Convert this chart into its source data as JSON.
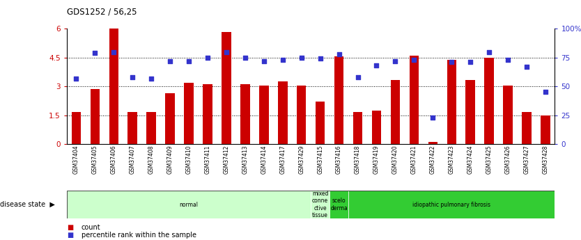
{
  "title": "GDS1252 / 56,25",
  "samples": [
    "GSM37404",
    "GSM37405",
    "GSM37406",
    "GSM37407",
    "GSM37408",
    "GSM37409",
    "GSM37410",
    "GSM37411",
    "GSM37412",
    "GSM37413",
    "GSM37414",
    "GSM37417",
    "GSM37429",
    "GSM37415",
    "GSM37416",
    "GSM37418",
    "GSM37419",
    "GSM37420",
    "GSM37421",
    "GSM37422",
    "GSM37423",
    "GSM37424",
    "GSM37425",
    "GSM37426",
    "GSM37427",
    "GSM37428"
  ],
  "count": [
    1.65,
    2.85,
    6.0,
    1.65,
    1.65,
    2.65,
    3.2,
    3.1,
    5.85,
    3.1,
    3.05,
    3.25,
    3.05,
    2.2,
    4.55,
    1.65,
    1.75,
    3.35,
    4.6,
    0.1,
    4.4,
    3.35,
    4.5,
    3.05,
    1.65,
    1.5
  ],
  "percentile": [
    57,
    79,
    80,
    58,
    57,
    72,
    72,
    75,
    80,
    75,
    72,
    73,
    75,
    74,
    78,
    58,
    68,
    72,
    73,
    23,
    71,
    71,
    80,
    73,
    67,
    45
  ],
  "ylim_left": [
    0,
    6
  ],
  "ylim_right": [
    0,
    100
  ],
  "yticks_left": [
    0,
    1.5,
    3.0,
    4.5,
    6.0
  ],
  "ytick_labels_left": [
    "0",
    "1.5",
    "3",
    "4.5",
    "6"
  ],
  "yticks_right": [
    0,
    25,
    50,
    75,
    100
  ],
  "ytick_labels_right": [
    "0",
    "25",
    "50",
    "75",
    "100%"
  ],
  "bar_color": "#cc0000",
  "dot_color": "#3333cc",
  "bar_width": 0.5,
  "group_defs": [
    {
      "label": "normal",
      "start": 0,
      "end": 13,
      "color": "#ccffcc",
      "text_color": "black"
    },
    {
      "label": "mixed\nconne\nctive\ntissue",
      "start": 13,
      "end": 14,
      "color": "#ccffcc",
      "text_color": "black"
    },
    {
      "label": "scelo\nderma",
      "start": 14,
      "end": 15,
      "color": "#33cc33",
      "text_color": "black"
    },
    {
      "label": "idiopathic pulmonary fibrosis",
      "start": 15,
      "end": 26,
      "color": "#33cc33",
      "text_color": "black"
    }
  ],
  "bg_color": "#ffffff",
  "legend_count_label": "count",
  "legend_pct_label": "percentile rank within the sample"
}
